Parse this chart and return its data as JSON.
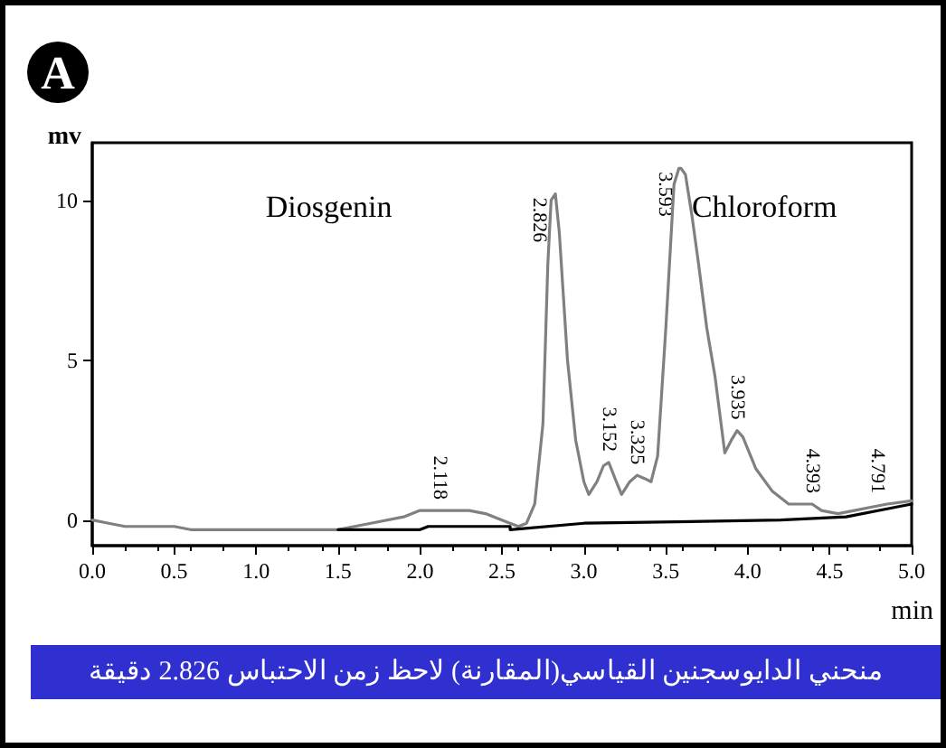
{
  "chart_data": {
    "type": "line",
    "title": "A",
    "xlabel": "min",
    "ylabel": "mv",
    "xlim": [
      0,
      5
    ],
    "xticks": [
      {
        "value": 0,
        "label": "0.0"
      },
      {
        "value": 0.5,
        "label": "0.5"
      },
      {
        "value": 1,
        "label": "1.0"
      },
      {
        "value": 1.5,
        "label": "1.5"
      },
      {
        "value": 2,
        "label": "2.0"
      },
      {
        "value": 2.5,
        "label": "2.5"
      },
      {
        "value": 3,
        "label": "3.0"
      },
      {
        "value": 3.5,
        "label": "3.5"
      },
      {
        "value": 4,
        "label": "4.0"
      },
      {
        "value": 4.5,
        "label": "4.5"
      },
      {
        "value": 5,
        "label": "5.0"
      }
    ],
    "ylim": [
      -0.8,
      11.8
    ],
    "yticks": [
      0,
      5,
      10
    ],
    "grid": false,
    "marker": "none",
    "line_style": "solid",
    "series": [
      {
        "color": "#808080",
        "x": [
          0,
          0.1,
          0.2,
          0.25,
          0.5,
          0.6,
          1.0,
          1.5,
          1.7,
          1.9,
          2.0,
          2.1,
          2.2,
          2.3,
          2.4,
          2.5,
          2.6,
          2.65,
          2.7,
          2.75,
          2.78,
          2.8,
          2.826,
          2.85,
          2.9,
          2.95,
          3.0,
          3.03,
          3.08,
          3.12,
          3.152,
          3.19,
          3.23,
          3.28,
          3.325,
          3.37,
          3.41,
          3.45,
          3.5,
          3.55,
          3.58,
          3.593,
          3.62,
          3.66,
          3.7,
          3.75,
          3.8,
          3.86,
          3.9,
          3.935,
          3.97,
          4.05,
          4.15,
          4.25,
          4.35,
          4.393,
          4.45,
          4.55,
          4.65,
          4.75,
          4.85,
          5.0
        ],
        "values": [
          0,
          -0.1,
          -0.2,
          -0.2,
          -0.2,
          -0.3,
          -0.3,
          -0.3,
          -0.1,
          0.1,
          0.3,
          0.3,
          0.3,
          0.3,
          0.2,
          0,
          -0.2,
          -0.1,
          0.5,
          3,
          8,
          10,
          10.2,
          9,
          5,
          2.5,
          1.2,
          0.8,
          1.2,
          1.7,
          1.8,
          1.3,
          0.8,
          1.2,
          1.4,
          1.3,
          1.2,
          2,
          6,
          10.5,
          11,
          11,
          10.8,
          9.5,
          8,
          6,
          4.5,
          2.1,
          2.5,
          2.8,
          2.6,
          1.6,
          0.9,
          0.5,
          0.5,
          0.5,
          0.3,
          0.2,
          0.3,
          0.4,
          0.5,
          0.6
        ]
      },
      {
        "color": "#000000",
        "x": [
          1.5,
          2.0,
          2.05,
          2.55,
          2.55,
          3.0,
          4.2,
          4.6,
          4.9,
          5.0
        ],
        "values": [
          -0.3,
          -0.3,
          -0.2,
          -0.2,
          -0.3,
          -0.1,
          0,
          0.1,
          0.4,
          0.5
        ]
      }
    ],
    "annotations": [
      "Diosgenin",
      "Chloroform",
      {
        "text": "2.118",
        "x": 2.118,
        "y": 0.3
      },
      {
        "text": "2.826",
        "x": 2.826,
        "y": 10.2
      },
      {
        "text": "3.152",
        "x": 3.152,
        "y": 1.8
      },
      {
        "text": "3.325",
        "x": 3.325,
        "y": 1.4
      },
      {
        "text": "3.593",
        "x": 3.593,
        "y": 11
      },
      {
        "text": "3.935",
        "x": 3.935,
        "y": 2.8
      },
      {
        "text": "4.393",
        "x": 4.393,
        "y": 0.5
      },
      {
        "text": "4.791",
        "x": 4.791,
        "y": 0.5
      },
      "منحني الدايوسجنين القياسي(المقارنة) لاحظ زمن الاحتباس 2.826 دقيقة"
    ]
  }
}
